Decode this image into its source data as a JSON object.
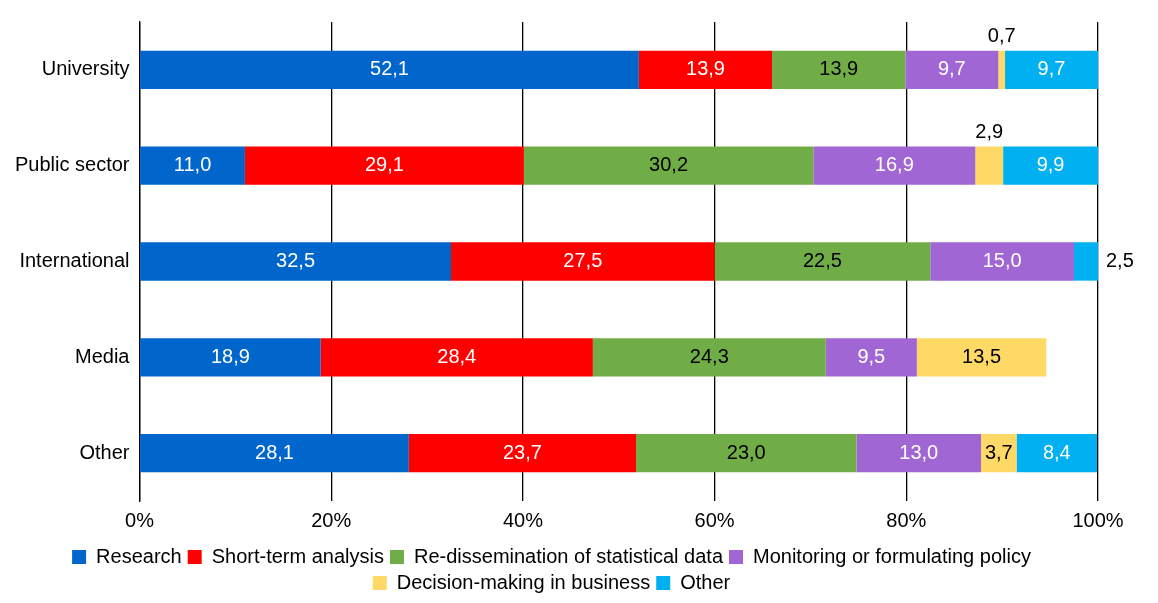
{
  "chart_data": {
    "type": "bar",
    "orientation": "horizontal",
    "stacked": true,
    "categories": [
      "University",
      "Public sector",
      "International",
      "Media",
      "Other"
    ],
    "series": [
      {
        "name": "Research",
        "color": "#0066cc",
        "values": [
          52.1,
          11.0,
          32.5,
          18.9,
          28.1
        ],
        "value_labels": [
          "52,1",
          "11,0",
          "32,5",
          "18,9",
          "28,1"
        ]
      },
      {
        "name": "Short-term analysis",
        "color": "#ff0000",
        "values": [
          13.9,
          29.1,
          27.5,
          28.4,
          23.7
        ],
        "value_labels": [
          "13,9",
          "29,1",
          "27,5",
          "28,4",
          "23,7"
        ]
      },
      {
        "name": "Re-dissemination of statistical data",
        "color": "#70ad47",
        "values": [
          13.9,
          30.2,
          22.5,
          24.3,
          23.0
        ],
        "value_labels": [
          "13,9",
          "30,2",
          "22,5",
          "24,3",
          "23,0"
        ]
      },
      {
        "name": "Monitoring or formulating policy",
        "color": "#a066d3",
        "values": [
          9.7,
          16.9,
          15.0,
          9.5,
          13.0
        ],
        "value_labels": [
          "9,7",
          "16,9",
          "15,0",
          "9,5",
          "13,0"
        ]
      },
      {
        "name": "Decision-making in business",
        "color": "#ffd966",
        "values": [
          0.7,
          2.9,
          null,
          13.5,
          3.7
        ],
        "value_labels": [
          "0,7",
          "2,9",
          null,
          "13,5",
          "3,7"
        ]
      },
      {
        "name": "Other",
        "color": "#00b0f0",
        "values": [
          9.7,
          9.9,
          2.5,
          null,
          8.4
        ],
        "value_labels": [
          "9,7",
          "9,9",
          "2,5",
          null,
          "8,4"
        ]
      }
    ],
    "xlim": [
      0,
      100
    ],
    "xticks": [
      {
        "value": 0,
        "label": "0%"
      },
      {
        "value": 20,
        "label": "20%"
      },
      {
        "value": 40,
        "label": "40%"
      },
      {
        "value": 60,
        "label": "60%"
      },
      {
        "value": 80,
        "label": "80%"
      },
      {
        "value": 100,
        "label": "100%"
      }
    ],
    "grid": "x",
    "legend": "bottom"
  }
}
